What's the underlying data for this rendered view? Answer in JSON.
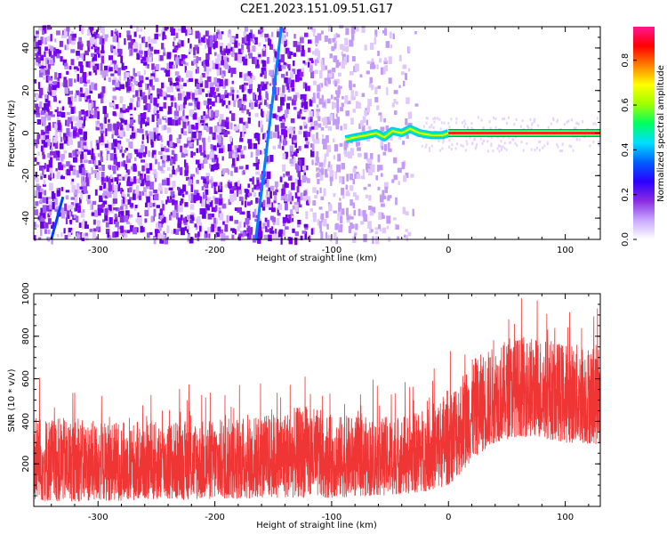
{
  "title": "C2E1.2023.151.09.51.G17",
  "chart_data": [
    {
      "type": "heatmap",
      "xlabel": "Height of straight line (km)",
      "ylabel": "Frequency (Hz)",
      "xlim": [
        -355,
        130
      ],
      "ylim": [
        -50,
        50
      ],
      "xticks": [
        -300,
        -200,
        -100,
        0,
        100
      ],
      "xtick_labels": [
        "-300",
        "-200",
        "-100",
        "0",
        "100"
      ],
      "yticks": [
        -40,
        -20,
        0,
        20,
        40
      ],
      "ytick_labels": [
        "-40",
        "-20",
        "0",
        "20",
        "40"
      ],
      "colorbar": {
        "label": "Normalized spectral amplitude",
        "range": [
          0,
          0.95
        ],
        "ticks": [
          0,
          0.2,
          0.4,
          0.6,
          0.8
        ],
        "tick_labels": [
          "0.0",
          "0.2",
          "0.4",
          "0.6",
          "0.8"
        ],
        "colormap": [
          "#ffffff",
          "#e0c8ff",
          "#8a2be2",
          "#0000ff",
          "#00ffff",
          "#00ff00",
          "#ffff00",
          "#ff0000",
          "#ff1493"
        ]
      },
      "features": {
        "noise_region_x": [
          -355,
          -25
        ],
        "line_segments": [
          {
            "x": [
              -165,
              -143
            ],
            "y": [
              -50,
              50
            ],
            "color": "#0080ff"
          },
          {
            "x": [
              -340,
              -330
            ],
            "y": [
              -50,
              -30
            ],
            "color": "#0040ff"
          }
        ],
        "carrier": {
          "x_wiggle": [
            [
              -88,
              -3
            ],
            [
              -80,
              -2
            ],
            [
              -70,
              -1
            ],
            [
              -62,
              0
            ],
            [
              -55,
              -2
            ],
            [
              -48,
              1
            ],
            [
              -40,
              0
            ],
            [
              -33,
              2
            ],
            [
              -25,
              0
            ],
            [
              -15,
              -1
            ],
            [
              -5,
              -1
            ],
            [
              0,
              0
            ]
          ],
          "x_steady": [
            0,
            130
          ],
          "y": 0
        }
      }
    },
    {
      "type": "line",
      "xlabel": "Height of straight line (km)",
      "ylabel": "SNR (10 * v/v)",
      "xlim": [
        -355,
        130
      ],
      "ylim": [
        0,
        1000
      ],
      "xticks": [
        -300,
        -200,
        -100,
        0,
        100
      ],
      "xtick_labels": [
        "-300",
        "-200",
        "-100",
        "0",
        "100"
      ],
      "yticks": [
        200,
        400,
        600,
        800,
        1000
      ],
      "ytick_labels": [
        "200",
        "400",
        "600",
        "800",
        "1000"
      ],
      "color": "#f03535",
      "envelope": {
        "x": [
          -355,
          -300,
          -250,
          -200,
          -150,
          -120,
          -100,
          -60,
          -30,
          -10,
          0,
          10,
          20,
          40,
          60,
          80,
          100,
          130
        ],
        "low": [
          20,
          25,
          30,
          30,
          40,
          40,
          40,
          50,
          60,
          80,
          100,
          150,
          220,
          300,
          330,
          320,
          300,
          290
        ],
        "high": [
          430,
          400,
          400,
          410,
          440,
          480,
          430,
          420,
          440,
          500,
          560,
          620,
          690,
          760,
          800,
          800,
          770,
          760
        ]
      }
    }
  ]
}
